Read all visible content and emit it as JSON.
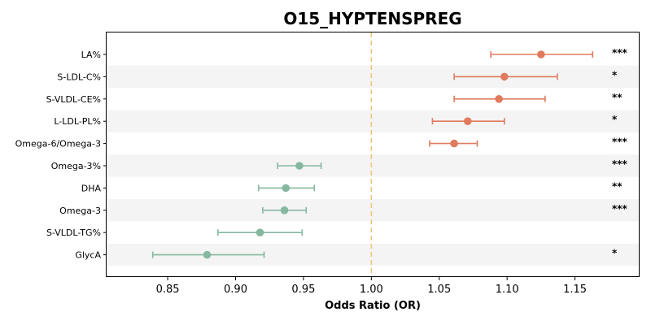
{
  "chart_data": {
    "type": "forest",
    "title": "O15_HYPTENSPREG",
    "xlabel": "Odds Ratio (OR)",
    "ylabel": "",
    "xlim": [
      0.805,
      1.197
    ],
    "xticks": [
      0.85,
      0.9,
      0.95,
      1.0,
      1.05,
      1.1,
      1.15
    ],
    "xtick_labels": [
      "0.85",
      "0.90",
      "0.95",
      "1.00",
      "1.05",
      "1.10",
      "1.15"
    ],
    "reference_line": 1.0,
    "colors": {
      "above_one": "#e07b5e",
      "below_one": "#86b8a0",
      "reference": "#f2c57c",
      "band": "#f4f4f4"
    },
    "rows": [
      {
        "label": "LA%",
        "or": 1.125,
        "lower": 1.088,
        "upper": 1.163,
        "sig": "***"
      },
      {
        "label": "S-LDL-C%",
        "or": 1.098,
        "lower": 1.061,
        "upper": 1.137,
        "sig": "*"
      },
      {
        "label": "S-VLDL-CE%",
        "or": 1.094,
        "lower": 1.061,
        "upper": 1.128,
        "sig": "**"
      },
      {
        "label": "L-LDL-PL%",
        "or": 1.071,
        "lower": 1.045,
        "upper": 1.098,
        "sig": "*"
      },
      {
        "label": "Omega-6/Omega-3",
        "or": 1.061,
        "lower": 1.043,
        "upper": 1.078,
        "sig": "***"
      },
      {
        "label": "Omega-3%",
        "or": 0.947,
        "lower": 0.931,
        "upper": 0.963,
        "sig": "***"
      },
      {
        "label": "DHA",
        "or": 0.937,
        "lower": 0.917,
        "upper": 0.958,
        "sig": "**"
      },
      {
        "label": "Omega-3",
        "or": 0.936,
        "lower": 0.92,
        "upper": 0.952,
        "sig": "***"
      },
      {
        "label": "S-VLDL-TG%",
        "or": 0.918,
        "lower": 0.887,
        "upper": 0.949,
        "sig": ""
      },
      {
        "label": "GlycA",
        "or": 0.879,
        "lower": 0.839,
        "upper": 0.921,
        "sig": "*"
      }
    ]
  }
}
